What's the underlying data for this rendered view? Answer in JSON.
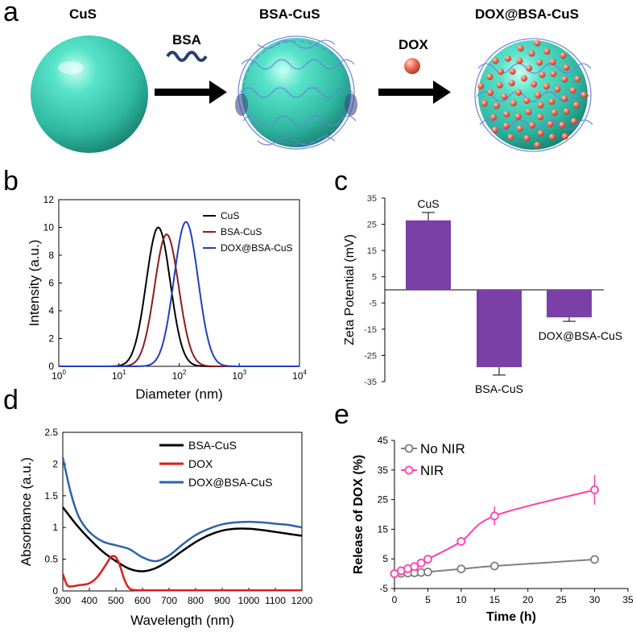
{
  "panel_a": {
    "letter": "a",
    "items": [
      "CuS",
      "BSA-CuS",
      "DOX@BSA-CuS"
    ],
    "reagents": [
      "BSA",
      "DOX"
    ]
  },
  "chart_data": [
    {
      "panel": "b",
      "type": "line",
      "xscale": "log",
      "xlabel": "Diameter (nm)",
      "ylabel": "Intensity (a.u.)",
      "xlim_exp": [
        0,
        4
      ],
      "xtick_exps": [
        0,
        1,
        2,
        3,
        4
      ],
      "ylim": [
        0,
        12
      ],
      "yticks": [
        0,
        2,
        4,
        6,
        8,
        10,
        12
      ],
      "legend": [
        "CuS",
        "BSA-CuS",
        "DOX@BSA-CuS"
      ],
      "series": [
        {
          "name": "CuS",
          "color": "#000000",
          "peak_nm": 45,
          "peak": 10.0,
          "sigma_log": 0.2
        },
        {
          "name": "BSA-CuS",
          "color": "#8b1a1a",
          "peak_nm": 62,
          "peak": 9.5,
          "sigma_log": 0.2
        },
        {
          "name": "DOX@BSA-CuS",
          "color": "#1f3fbf",
          "peak_nm": 130,
          "peak": 10.4,
          "sigma_log": 0.2
        }
      ]
    },
    {
      "panel": "c",
      "type": "bar",
      "ylabel": "Zeta Potential (mV)",
      "ylim": [
        -35,
        35
      ],
      "yticks": [
        35,
        25,
        15,
        5,
        -5,
        -15,
        -25,
        -35
      ],
      "categories": [
        "CuS",
        "BSA-CuS",
        "DOX@BSA-CuS"
      ],
      "values": [
        26.5,
        -29.5,
        -10.5
      ],
      "errors": [
        3.0,
        3.0,
        1.5
      ],
      "bar_color": "#7b3fa8"
    },
    {
      "panel": "d",
      "type": "line",
      "xlabel": "Wavelength (nm)",
      "ylabel": "Absorbance (a.u.)",
      "xlim": [
        300,
        1200
      ],
      "xticks": [
        300,
        400,
        500,
        600,
        700,
        800,
        900,
        1000,
        1100,
        1200
      ],
      "ylim": [
        0,
        2.5
      ],
      "yticks": [
        0,
        0.5,
        1,
        1.5,
        2,
        2.5
      ],
      "ytick_labels": [
        "0",
        "0.5",
        "1",
        "1.5",
        "2",
        "2.5"
      ],
      "legend": [
        "BSA-CuS",
        "DOX",
        "DOX@BSA-CuS"
      ],
      "series": [
        {
          "name": "BSA-CuS",
          "color": "#000000",
          "x": [
            300,
            350,
            400,
            450,
            500,
            550,
            600,
            650,
            700,
            750,
            800,
            850,
            900,
            950,
            1000,
            1050,
            1100,
            1150,
            1200
          ],
          "y": [
            1.32,
            1.05,
            0.82,
            0.62,
            0.47,
            0.35,
            0.31,
            0.36,
            0.48,
            0.63,
            0.77,
            0.88,
            0.95,
            0.98,
            0.98,
            0.96,
            0.93,
            0.9,
            0.87
          ]
        },
        {
          "name": "DOX",
          "color": "#e01b1b",
          "x": [
            300,
            315,
            330,
            360,
            400,
            430,
            460,
            480,
            490,
            500,
            515,
            530,
            545,
            560,
            600,
            700,
            800,
            1000,
            1200
          ],
          "y": [
            0.27,
            0.1,
            0.07,
            0.09,
            0.12,
            0.22,
            0.4,
            0.53,
            0.55,
            0.53,
            0.4,
            0.2,
            0.07,
            0.02,
            0.01,
            0.01,
            0.01,
            0.01,
            0.01
          ]
        },
        {
          "name": "DOX@BSA-CuS",
          "color": "#2b62b0",
          "x": [
            300,
            330,
            360,
            400,
            450,
            500,
            550,
            600,
            650,
            700,
            750,
            800,
            850,
            900,
            950,
            1000,
            1050,
            1100,
            1150,
            1200
          ],
          "y": [
            2.1,
            1.55,
            1.17,
            0.93,
            0.78,
            0.72,
            0.66,
            0.53,
            0.47,
            0.56,
            0.73,
            0.88,
            0.98,
            1.05,
            1.08,
            1.09,
            1.08,
            1.06,
            1.04,
            1.0
          ]
        }
      ]
    },
    {
      "panel": "e",
      "type": "line",
      "xlabel": "Time (h)",
      "ylabel": "Release of DOX (%)",
      "xlim": [
        0,
        35
      ],
      "xticks": [
        0,
        5,
        10,
        15,
        20,
        25,
        30,
        35
      ],
      "ylim": [
        -5,
        45
      ],
      "yticks": [
        -5,
        5,
        15,
        25,
        35,
        45
      ],
      "legend": [
        "No NIR",
        "NIR"
      ],
      "series": [
        {
          "name": "No NIR",
          "color": "#808080",
          "x": [
            0,
            1,
            2,
            3,
            4,
            5,
            10,
            15,
            30
          ],
          "y": [
            0,
            0.1,
            0.2,
            0.3,
            0.4,
            0.6,
            1.6,
            2.6,
            4.8
          ],
          "err": [
            0,
            0,
            0,
            0,
            0,
            0,
            0.4,
            0.4,
            0.5
          ]
        },
        {
          "name": "NIR",
          "color": "#ff3fb2",
          "x": [
            0,
            1,
            2,
            3,
            4,
            5,
            10,
            15,
            30
          ],
          "y": [
            0,
            1.0,
            1.7,
            2.4,
            3.6,
            4.9,
            10.9,
            19.5,
            28.3
          ],
          "err": [
            0,
            0.4,
            0.4,
            0.5,
            0.6,
            0.6,
            1.5,
            3.2,
            5.0
          ]
        }
      ]
    }
  ],
  "colors": {
    "sphere": "#3fd1b8",
    "protein": "#6a7fd8",
    "dox": "#f06b5c",
    "arrow": "#000000",
    "bsa_wave": "#2c3e6e"
  }
}
